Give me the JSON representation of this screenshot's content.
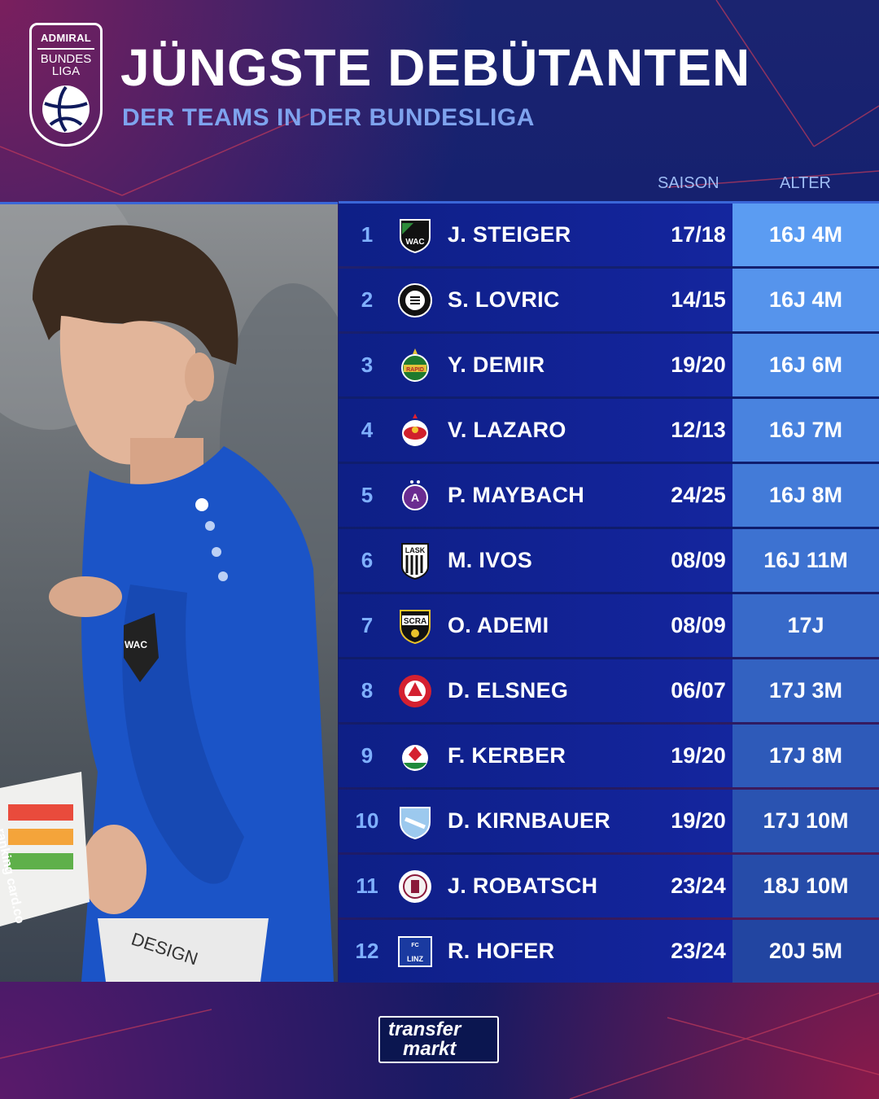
{
  "header": {
    "logo_top": "ADMIRAL",
    "logo_line1": "BUNDES",
    "logo_line2": "LIGA",
    "title": "JÜNGSTE DEBÜTANTEN",
    "subtitle": "DER TEAMS IN DER BUNDESLIGA"
  },
  "columns": {
    "season": "SAISON",
    "age": "ALTER"
  },
  "rows": [
    {
      "rank": "1",
      "name": "J. STEIGER",
      "season": "17/18",
      "age": "16J 4M",
      "crest": "wac-crest-icon",
      "age_bg": "#5b9cf2"
    },
    {
      "rank": "2",
      "name": "S. LOVRIC",
      "season": "14/15",
      "age": "16J 4M",
      "crest": "sturm-graz-crest-icon",
      "age_bg": "#5694ec"
    },
    {
      "rank": "3",
      "name": "Y. DEMIR",
      "season": "19/20",
      "age": "16J 6M",
      "crest": "rapid-crest-icon",
      "age_bg": "#4f8ce6"
    },
    {
      "rank": "4",
      "name": "V. LAZARO",
      "season": "12/13",
      "age": "16J 7M",
      "crest": "salzburg-crest-icon",
      "age_bg": "#4983df"
    },
    {
      "rank": "5",
      "name": "P. MAYBACH",
      "season": "24/25",
      "age": "16J 8M",
      "crest": "austria-wien-crest-icon",
      "age_bg": "#437bd8"
    },
    {
      "rank": "6",
      "name": "M. IVOS",
      "season": "08/09",
      "age": "16J 11M",
      "crest": "lask-crest-icon",
      "age_bg": "#3d72d1"
    },
    {
      "rank": "7",
      "name": "O. ADEMI",
      "season": "08/09",
      "age": "17J",
      "crest": "scra-crest-icon",
      "age_bg": "#386ac9"
    },
    {
      "rank": "8",
      "name": "D. ELSNEG",
      "season": "06/07",
      "age": "17J 3M",
      "crest": "gak-crest-icon",
      "age_bg": "#3362c1"
    },
    {
      "rank": "9",
      "name": "F. KERBER",
      "season": "19/20",
      "age": "17J 8M",
      "crest": "wsg-tirol-crest-icon",
      "age_bg": "#2e5ab9"
    },
    {
      "rank": "10",
      "name": "D. KIRNBAUER",
      "season": "19/20",
      "age": "17J 10M",
      "crest": "hartberg-crest-icon",
      "age_bg": "#2a53b1"
    },
    {
      "rank": "11",
      "name": "J. ROBATSCH",
      "season": "23/24",
      "age": "18J 10M",
      "crest": "altach-crest-icon",
      "age_bg": "#264ca9"
    },
    {
      "rank": "12",
      "name": "R. HOFER",
      "season": "23/24",
      "age": "20J 5M",
      "crest": "blau-weiss-linz-crest-icon",
      "age_bg": "#2245a1"
    }
  ],
  "photo": {
    "jersey_badge": "WAC",
    "banner_text": "ranking card.co",
    "shorts_text": "DESIGN"
  },
  "footer": {
    "brand_line1": "transfer",
    "brand_line2": "markt"
  }
}
